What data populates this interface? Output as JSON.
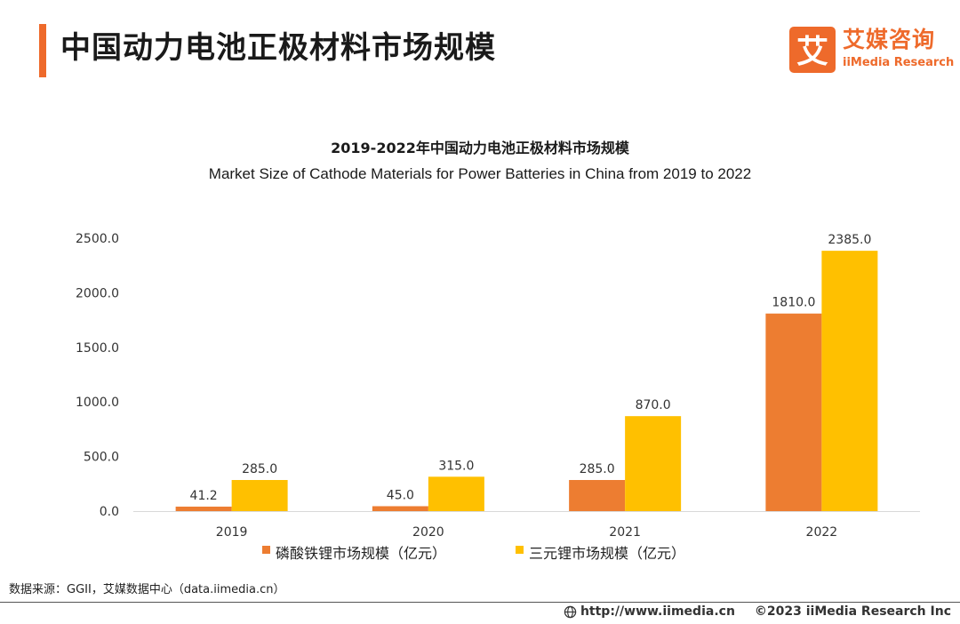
{
  "header": {
    "title": "中国动力电池正极材料市场规模",
    "logo_cn": "艾媒咨询",
    "logo_en": "iiMedia Research",
    "logo_mark_glyph": "艾"
  },
  "colors": {
    "accent": "#ee6a2b",
    "series_lfp": "#ed7d31",
    "series_ncm": "#ffc000"
  },
  "chart_data": {
    "type": "bar",
    "title_cn": "2019-2022年中国动力电池正极材料市场规模",
    "title_en": "Market Size of Cathode Materials for Power Batteries in China from 2019 to 2022",
    "categories": [
      "2019",
      "2020",
      "2021",
      "2022"
    ],
    "series": [
      {
        "name": "磷酸铁锂市场规模（亿元）",
        "values": [
          41.2,
          45.0,
          285.0,
          1810.0
        ],
        "labels": [
          "41.2",
          "45.0",
          "285.0",
          "1810.0"
        ]
      },
      {
        "name": "三元锂市场规模（亿元）",
        "values": [
          285.0,
          315.0,
          870.0,
          2385.0
        ],
        "labels": [
          "285.0",
          "315.0",
          "870.0",
          "2385.0"
        ]
      }
    ],
    "ylim": [
      0,
      2500
    ],
    "yticks": [
      "0.0",
      "500.0",
      "1000.0",
      "1500.0",
      "2000.0",
      "2500.0"
    ],
    "ytick_values": [
      0,
      500,
      1000,
      1500,
      2000,
      2500
    ],
    "xlabel": "",
    "ylabel": "",
    "legend_position": "bottom",
    "grid": false
  },
  "footer": {
    "source": "数据来源：GGII，艾媒数据中心（data.iimedia.cn）",
    "url": "http://www.iimedia.cn",
    "copyright": "©2023  iiMedia Research  Inc"
  }
}
